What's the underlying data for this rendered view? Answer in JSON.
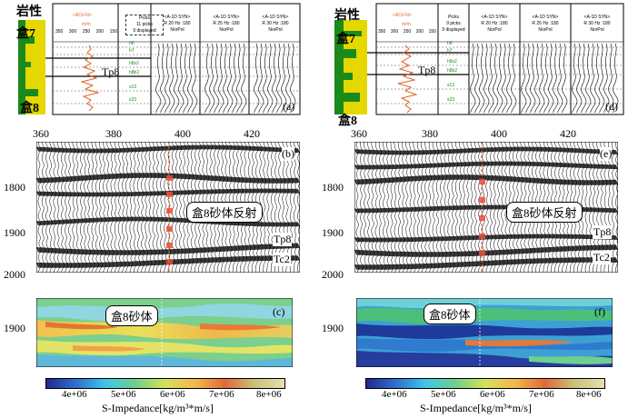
{
  "figure": {
    "panels": {
      "a": {
        "label": "(a)",
        "lith_title": "岩性",
        "lith_top": "盒7",
        "lith_bottom": "盒8",
        "log_header": "<ACrl-N>",
        "log_unit": "m/m",
        "log_ticks": [
          "350",
          "300",
          "250",
          "200",
          "150"
        ],
        "picks_title": "Picks",
        "picks_count": "11 picks",
        "picks_displayed": "9 displayed",
        "horizons": [
          "h6",
          "h7",
          "h8s2",
          "h8b2",
          "s13",
          "s23"
        ],
        "horizon_tp8": "Tp8",
        "syn_tracks": [
          {
            "title": "<A-1D SYN>",
            "freq": "R 20 Hz :180",
            "pol": "NorPol"
          },
          {
            "title": "<A-1D SYN>",
            "freq": "R 25 Hz :180",
            "pol": "NorPol"
          },
          {
            "title": "<A-1D SYN>",
            "freq": "R 30 Hz :180",
            "pol": "NorPol"
          }
        ]
      },
      "d": {
        "label": "(d)",
        "lith_title": "岩性",
        "lith_top": "盒7",
        "lith_bottom": "盒8",
        "log_header": "<ACrl-N>",
        "log_unit": "m/m",
        "log_ticks": [
          "350",
          "300",
          "250",
          "200",
          "150"
        ],
        "picks_title": "Picks",
        "picks_count": "9 picks",
        "picks_displayed": "9 displayed",
        "horizons": [
          "h6",
          "h7",
          "h8s2",
          "h8b2",
          "s13",
          "s23"
        ],
        "horizon_tp8": "Tp8",
        "syn_tracks": [
          {
            "title": "<A-1D SYN>",
            "freq": "R 20 Hz :180",
            "pol": "NorPol"
          },
          {
            "title": "<A-1D SYN>",
            "freq": "R 25 Hz :180",
            "pol": "NorPol"
          },
          {
            "title": "<A-1D SYN>",
            "freq": "R 30 Hz :180",
            "pol": "NorPol"
          }
        ]
      },
      "b": {
        "label": "(b)",
        "x_ticks": [
          "360",
          "380",
          "400",
          "420"
        ],
        "y_ticks": [
          "1800",
          "1900",
          "2000"
        ],
        "callout": "盒8砂体反射",
        "horizon_tp8": "Tp8",
        "horizon_tc2": "Tc2"
      },
      "e": {
        "label": "(e)",
        "x_ticks": [
          "360",
          "380",
          "400",
          "420"
        ],
        "y_ticks": [
          "1800",
          "1900",
          "2000"
        ],
        "callout": "盒8砂体反射",
        "horizon_tp8": "Tp8",
        "horizon_tc2": "Tc2"
      },
      "c": {
        "label": "(c)",
        "y_tick": "1900",
        "callout": "盒8砂体"
      },
      "f": {
        "label": "(f)",
        "y_tick": "1900",
        "callout": "盒8砂体"
      }
    },
    "colorbar": {
      "ticks": [
        "4e+06",
        "5e+06",
        "6e+06",
        "7e+06",
        "8e+06"
      ],
      "label": "S-Impedance[kg/m³*m/s]",
      "colors": [
        "#1f2a8c",
        "#2f6fd0",
        "#3fc6e8",
        "#6fd08a",
        "#d6e05a",
        "#f2b84a",
        "#e06a3a",
        "#c8c27a",
        "#e9dfb0"
      ]
    }
  }
}
